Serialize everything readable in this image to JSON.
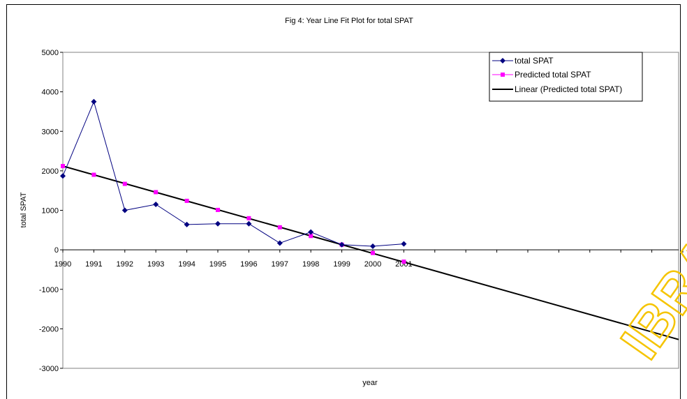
{
  "chart_data": {
    "type": "line",
    "title": "Fig 4: Year Line Fit  Plot for total SPAT",
    "xlabel": "year",
    "ylabel": "total SPAT",
    "x_categories": [
      "1990",
      "1991",
      "1992",
      "1993",
      "1994",
      "1995",
      "1996",
      "1997",
      "1998",
      "1999",
      "2000",
      "2001"
    ],
    "ylim": [
      -3000,
      5000
    ],
    "y_ticks": [
      -3000,
      -2000,
      -1000,
      0,
      1000,
      2000,
      3000,
      4000,
      5000
    ],
    "grid": false,
    "legend_position": "top-right",
    "series": [
      {
        "name": "total SPAT",
        "color": "#000080",
        "marker": "diamond",
        "values": [
          1870,
          3750,
          1000,
          1150,
          640,
          660,
          660,
          170,
          450,
          130,
          90,
          150
        ]
      },
      {
        "name": "Predicted total SPAT",
        "color": "#ff00ff",
        "marker": "square",
        "values": [
          2120,
          1900,
          1670,
          1460,
          1240,
          1010,
          800,
          570,
          350,
          130,
          -80,
          -300
        ]
      },
      {
        "name": "Linear (Predicted total SPAT)",
        "color": "#000000",
        "marker": "none",
        "start": {
          "x": "1990",
          "y": 2120
        },
        "end_y_at_plot_edge": -2270
      }
    ]
  },
  "watermark": "IBRA"
}
